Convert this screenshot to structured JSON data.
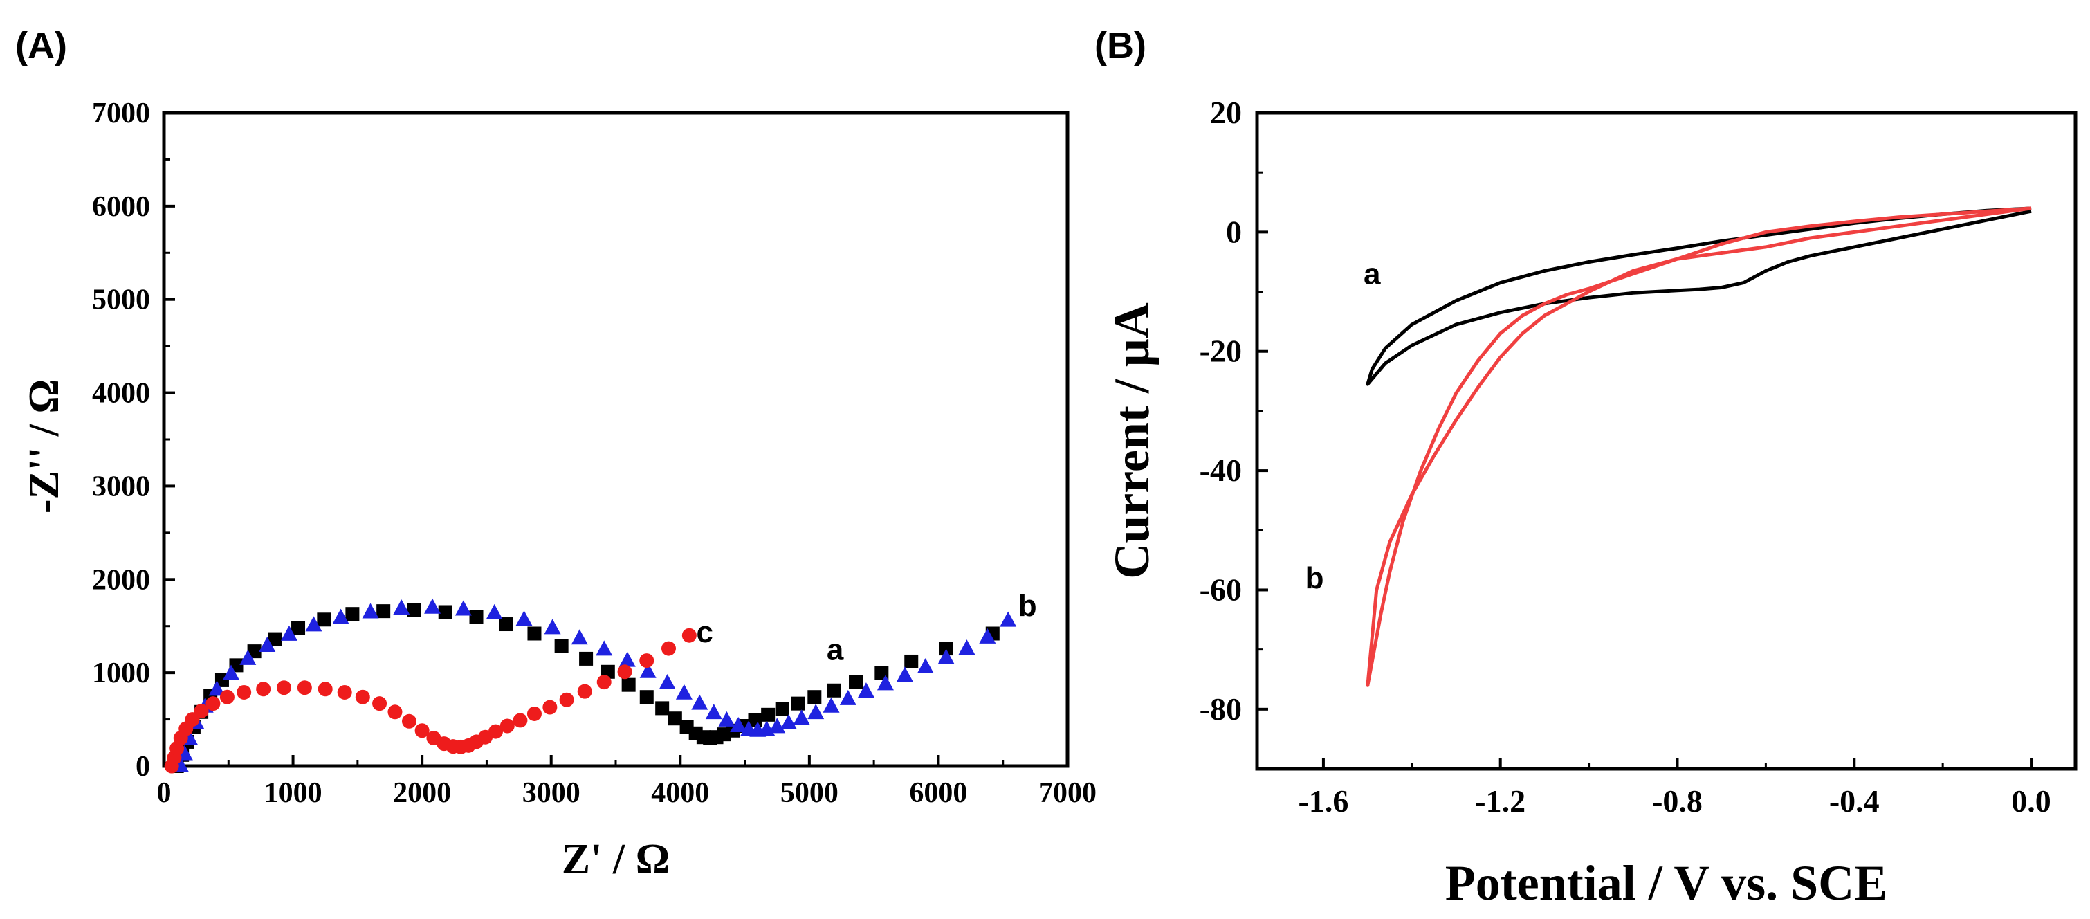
{
  "figure": {
    "panel_a_label": "(A)",
    "panel_b_label": "(B)"
  },
  "chart_data": [
    {
      "type": "scatter",
      "panel": "(A)",
      "title": "",
      "xlabel": "Z' / Ω",
      "ylabel": "-Z'' / Ω",
      "xlim": [
        0,
        7000
      ],
      "ylim": [
        0,
        7000
      ],
      "xticks": [
        0,
        1000,
        2000,
        3000,
        4000,
        5000,
        6000,
        7000
      ],
      "yticks": [
        0,
        1000,
        2000,
        3000,
        4000,
        5000,
        6000,
        7000
      ],
      "grid": false,
      "series": [
        {
          "name": "a",
          "color": "#000000",
          "marker": "square",
          "label_at": [
            5200,
            1250
          ],
          "x": [
            100,
            140,
            180,
            230,
            290,
            360,
            450,
            560,
            700,
            860,
            1040,
            1240,
            1460,
            1700,
            1940,
            2180,
            2420,
            2650,
            2870,
            3080,
            3270,
            3440,
            3600,
            3740,
            3860,
            3960,
            4050,
            4120,
            4180,
            4230,
            4280,
            4340,
            4410,
            4490,
            4580,
            4680,
            4790,
            4910,
            5040,
            5190,
            5360,
            5560,
            5790,
            6060,
            6420
          ],
          "y": [
            0,
            120,
            260,
            420,
            580,
            750,
            920,
            1080,
            1230,
            1360,
            1480,
            1570,
            1630,
            1660,
            1670,
            1650,
            1600,
            1520,
            1420,
            1290,
            1150,
            1010,
            870,
            740,
            620,
            510,
            420,
            350,
            310,
            300,
            310,
            340,
            380,
            430,
            490,
            550,
            610,
            670,
            740,
            810,
            900,
            1000,
            1120,
            1260,
            1420
          ]
        },
        {
          "name": "b",
          "color": "#1f22e0",
          "marker": "triangle",
          "label_at": [
            6690,
            1720
          ],
          "x": [
            130,
            160,
            200,
            250,
            320,
            410,
            520,
            650,
            800,
            970,
            1160,
            1370,
            1600,
            1840,
            2080,
            2320,
            2560,
            2790,
            3010,
            3220,
            3410,
            3590,
            3750,
            3900,
            4030,
            4150,
            4260,
            4360,
            4450,
            4530,
            4600,
            4670,
            4750,
            4840,
            4940,
            5050,
            5170,
            5300,
            5440,
            5590,
            5740,
            5900,
            6060,
            6220,
            6380,
            6540
          ],
          "y": [
            0,
            130,
            290,
            460,
            640,
            820,
            990,
            1150,
            1290,
            1410,
            1510,
            1590,
            1650,
            1690,
            1700,
            1680,
            1640,
            1570,
            1480,
            1370,
            1250,
            1130,
            1010,
            890,
            780,
            670,
            570,
            490,
            430,
            390,
            380,
            390,
            420,
            460,
            510,
            570,
            640,
            720,
            800,
            880,
            970,
            1060,
            1160,
            1260,
            1380,
            1560
          ]
        },
        {
          "name": "c",
          "color": "#ee1c1c",
          "marker": "circle",
          "label_at": [
            4190,
            1440
          ],
          "x": [
            60,
            80,
            100,
            130,
            170,
            220,
            290,
            380,
            490,
            620,
            770,
            930,
            1090,
            1250,
            1400,
            1540,
            1670,
            1790,
            1900,
            2000,
            2090,
            2170,
            2240,
            2300,
            2360,
            2420,
            2490,
            2570,
            2660,
            2760,
            2870,
            2990,
            3120,
            3260,
            3410,
            3570,
            3740,
            3910,
            4070
          ],
          "y": [
            0,
            90,
            190,
            300,
            400,
            500,
            590,
            670,
            740,
            790,
            825,
            840,
            840,
            825,
            790,
            740,
            670,
            580,
            480,
            380,
            300,
            240,
            210,
            205,
            220,
            260,
            310,
            370,
            430,
            490,
            560,
            630,
            710,
            800,
            900,
            1010,
            1130,
            1260,
            1400
          ]
        }
      ]
    },
    {
      "type": "line",
      "panel": "(B)",
      "title": "",
      "xlabel": "Potential / V vs. SCE",
      "ylabel": "Current / μA",
      "xlim": [
        -1.75,
        0.1
      ],
      "ylim": [
        -90,
        20
      ],
      "xticks": [
        -1.6,
        -1.2,
        -0.8,
        -0.4,
        0.0
      ],
      "xtick_labels": [
        "-1.6",
        "-1.2",
        "-0.8",
        "-0.4",
        "0.0"
      ],
      "yticks": [
        20,
        0,
        -20,
        -40,
        -60,
        -80
      ],
      "grid": false,
      "series": [
        {
          "name": "a",
          "color": "#000000",
          "label_at": [
            -1.49,
            -7
          ],
          "x": [
            0.0,
            -0.1,
            -0.2,
            -0.3,
            -0.4,
            -0.5,
            -0.55,
            -0.6,
            -0.65,
            -0.7,
            -0.75,
            -0.8,
            -0.9,
            -1.0,
            -1.1,
            -1.2,
            -1.3,
            -1.4,
            -1.46,
            -1.5,
            -1.49,
            -1.46,
            -1.4,
            -1.3,
            -1.2,
            -1.1,
            -1.0,
            -0.9,
            -0.8,
            -0.7,
            -0.6,
            -0.5,
            -0.4,
            -0.3,
            -0.2,
            -0.1,
            0.0
          ],
          "y": [
            3.5,
            2.0,
            0.5,
            -1.0,
            -2.5,
            -4.0,
            -5.0,
            -6.5,
            -8.5,
            -9.3,
            -9.6,
            -9.8,
            -10.2,
            -11.0,
            -12.0,
            -13.5,
            -15.5,
            -19.0,
            -22.0,
            -25.5,
            -23.0,
            -19.5,
            -15.5,
            -11.5,
            -8.5,
            -6.5,
            -5.0,
            -3.8,
            -2.7,
            -1.5,
            -0.5,
            0.5,
            1.5,
            2.3,
            3.0,
            3.6,
            4.0
          ]
        },
        {
          "name": "b",
          "color": "#f04040",
          "label_at": [
            -1.62,
            -58
          ],
          "x": [
            0.0,
            -0.1,
            -0.2,
            -0.3,
            -0.4,
            -0.5,
            -0.6,
            -0.7,
            -0.8,
            -0.9,
            -1.0,
            -1.05,
            -1.1,
            -1.15,
            -1.2,
            -1.25,
            -1.3,
            -1.35,
            -1.4,
            -1.45,
            -1.48,
            -1.5,
            -1.49,
            -1.47,
            -1.45,
            -1.42,
            -1.38,
            -1.34,
            -1.3,
            -1.25,
            -1.2,
            -1.15,
            -1.1,
            -1.05,
            -1.0,
            -0.9,
            -0.8,
            -0.7,
            -0.6,
            -0.5,
            -0.4,
            -0.3,
            -0.2,
            -0.1,
            0.0
          ],
          "y": [
            4.0,
            3.0,
            2.0,
            1.0,
            0.0,
            -1.0,
            -2.5,
            -3.5,
            -4.5,
            -6.5,
            -10.0,
            -12.0,
            -14.0,
            -17.0,
            -21.0,
            -26.0,
            -31.5,
            -37.5,
            -44.0,
            -52.0,
            -60.0,
            -76.0,
            -72.0,
            -64.0,
            -57.0,
            -48.5,
            -40.0,
            -33.0,
            -27.0,
            -21.5,
            -17.0,
            -14.0,
            -12.0,
            -10.5,
            -9.5,
            -7.0,
            -4.5,
            -2.0,
            0.0,
            1.0,
            1.8,
            2.5,
            3.0,
            3.5,
            4.0
          ]
        }
      ]
    }
  ]
}
